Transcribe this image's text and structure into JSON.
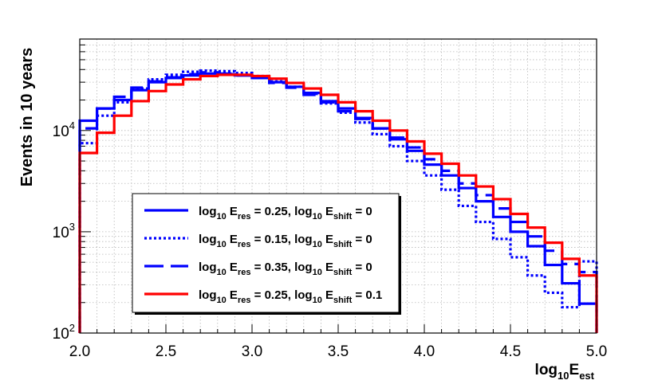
{
  "chart_data": {
    "type": "line",
    "step": true,
    "ylog": true,
    "xlim": [
      2.0,
      5.0
    ],
    "ylim": [
      100,
      80000
    ],
    "ylabel": "Events in 10 years",
    "xlabel": {
      "base": "log",
      "base_sub": "10",
      "main": "E",
      "main_sub": "est"
    },
    "xticks": [
      2.0,
      2.5,
      3.0,
      3.5,
      4.0,
      4.5,
      5.0
    ],
    "xtick_labels": [
      "2.0",
      "2.5",
      "3.0",
      "3.5",
      "4.0",
      "4.5",
      "5.0"
    ],
    "ytick_labels": [
      {
        "base": "10",
        "exp": "2",
        "value": 100
      },
      {
        "base": "10",
        "exp": "3",
        "value": 1000
      },
      {
        "base": "10",
        "exp": "4",
        "value": 10000
      }
    ],
    "grid": true,
    "legend_position": "lower-left",
    "bin_edges": [
      2.0,
      2.1,
      2.2,
      2.3,
      2.4,
      2.5,
      2.6,
      2.7,
      2.8,
      2.9,
      3.0,
      3.1,
      3.2,
      3.3,
      3.4,
      3.5,
      3.6,
      3.7,
      3.8,
      3.9,
      4.0,
      4.1,
      4.2,
      4.3,
      4.4,
      4.5,
      4.6,
      4.7,
      4.8,
      4.9,
      5.0
    ],
    "series": [
      {
        "name": "log10 Eres = 0.25, log10 Eshift = 0",
        "legend": [
          "log",
          "10",
          " E",
          "res",
          " = 0.25, log",
          "10",
          " E",
          "shift",
          " = 0"
        ],
        "color": "#0000ff",
        "style": "solid",
        "values": [
          12500,
          16500,
          20000,
          25000,
          30000,
          33000,
          35000,
          36500,
          36000,
          35000,
          33000,
          30000,
          27000,
          23500,
          19500,
          16500,
          13300,
          10500,
          8200,
          6300,
          4600,
          3600,
          2700,
          2000,
          1400,
          1000,
          720,
          470,
          310,
          195
        ]
      },
      {
        "name": "log10 Eres = 0.15, log10 Eshift = 0",
        "legend": [
          "log",
          "10",
          " E",
          "res",
          " = 0.15, log",
          "10",
          " E",
          "shift",
          " = 0"
        ],
        "color": "#0000ff",
        "style": "dotted",
        "values": [
          7500,
          14000,
          19000,
          26000,
          32000,
          35500,
          38000,
          39000,
          38500,
          37000,
          34500,
          30500,
          27000,
          23000,
          18500,
          15000,
          12000,
          9200,
          7000,
          5000,
          3600,
          2600,
          1800,
          1250,
          850,
          560,
          370,
          250,
          180,
          510
        ]
      },
      {
        "name": "log10 Eres = 0.35, log10 Eshift = 0",
        "legend": [
          "log",
          "10",
          " E",
          "res",
          " = 0.35, log",
          "10",
          " E",
          "shift",
          " = 0"
        ],
        "color": "#0000ff",
        "style": "dashed",
        "values": [
          10500,
          16500,
          21500,
          26500,
          30500,
          33500,
          36000,
          37500,
          36500,
          35000,
          33000,
          29500,
          26500,
          22500,
          19000,
          15500,
          13000,
          10500,
          8500,
          6800,
          5200,
          4000,
          3000,
          2300,
          1700,
          1250,
          900,
          650,
          480,
          400
        ]
      },
      {
        "name": "log10 Eres = 0.25, log10 Eshift = 0.1",
        "legend": [
          "log",
          "10",
          " E",
          "res",
          " = 0.25, log",
          "10",
          " E",
          "shift",
          " = 0.1"
        ],
        "color": "#ff0000",
        "style": "solid",
        "values": [
          6000,
          9500,
          14000,
          19500,
          24500,
          28500,
          32000,
          34500,
          35500,
          35500,
          34500,
          32500,
          29500,
          26000,
          22500,
          19000,
          15500,
          12500,
          10000,
          7800,
          5900,
          4700,
          3600,
          2800,
          2100,
          1500,
          1100,
          780,
          540,
          370
        ]
      }
    ]
  }
}
